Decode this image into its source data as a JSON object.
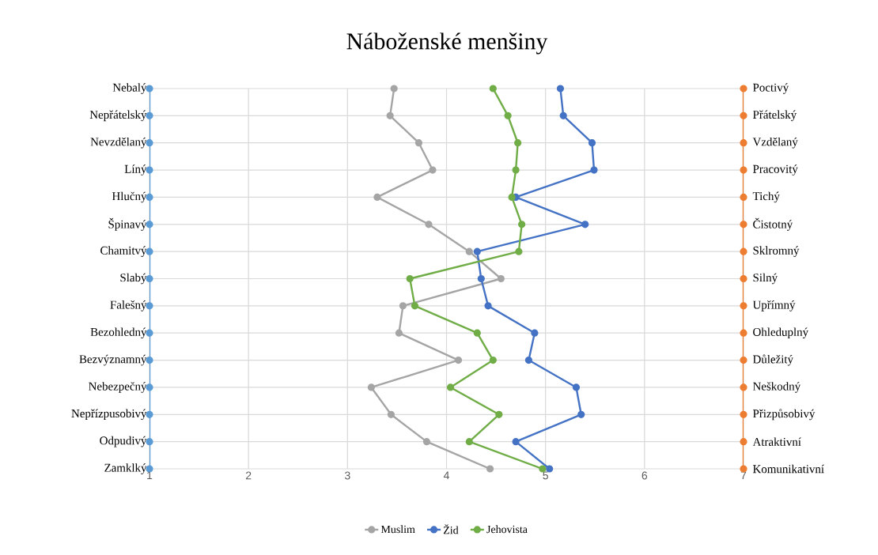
{
  "chart_data": {
    "type": "line",
    "title": "Náboženské menšiny",
    "orientation": "horizontal",
    "categories": [
      "Nebalý",
      "Nepřátelský",
      "Nevzdělaný",
      "Líný",
      "Hlučný",
      "Špinavý",
      "Chamitvý",
      "Slabý",
      "Falešný",
      "Bezohledný",
      "Bezvýznamný",
      "Nebezpečný",
      "Nepřízpusobivý",
      "Odpudivý",
      "Zamklký"
    ],
    "y2_categories": [
      "Poctivý",
      "Přátelský",
      "Vzdělaný",
      "Pracovitý",
      "Tichý",
      "Čistotný",
      "Sklromný",
      "Silný",
      "Upřímný",
      "Ohleduplný",
      "Důležitý",
      "Neškodný",
      "Přizpůsobivý",
      "Atraktivní",
      "Komunikativní"
    ],
    "series": [
      {
        "color": "#5b9bd5",
        "values": [
          1,
          1,
          1,
          1,
          1,
          1,
          1,
          1,
          1,
          1,
          1,
          1,
          1,
          1,
          1
        ]
      },
      {
        "color": "#ed7d31",
        "values": [
          7,
          7,
          7,
          7,
          7,
          7,
          7,
          7,
          7,
          7,
          7,
          7,
          7,
          7,
          7
        ]
      },
      {
        "name": "Muslim",
        "color": "#a5a5a5",
        "values": [
          3.47,
          3.43,
          3.72,
          3.86,
          3.3,
          3.82,
          4.23,
          4.55,
          3.56,
          3.52,
          4.12,
          3.24,
          3.44,
          3.8,
          4.44
        ]
      },
      {
        "name": "Žid",
        "color": "#4472c4",
        "values": [
          5.15,
          5.18,
          5.47,
          5.49,
          4.7,
          5.4,
          4.31,
          4.35,
          4.42,
          4.89,
          4.83,
          5.31,
          5.36,
          4.7,
          5.04
        ]
      },
      {
        "name": "Jehovista",
        "color": "#70ad47",
        "values": [
          4.47,
          4.62,
          4.72,
          4.7,
          4.66,
          4.76,
          4.73,
          3.63,
          3.68,
          4.31,
          4.47,
          4.04,
          4.53,
          4.23,
          4.97
        ]
      }
    ],
    "xlim": [
      1,
      7
    ],
    "xticks": [
      1,
      2,
      3,
      4,
      5,
      6,
      7
    ],
    "grid": true,
    "legend": "bottom",
    "marker": "circle",
    "line_style": "solid"
  }
}
